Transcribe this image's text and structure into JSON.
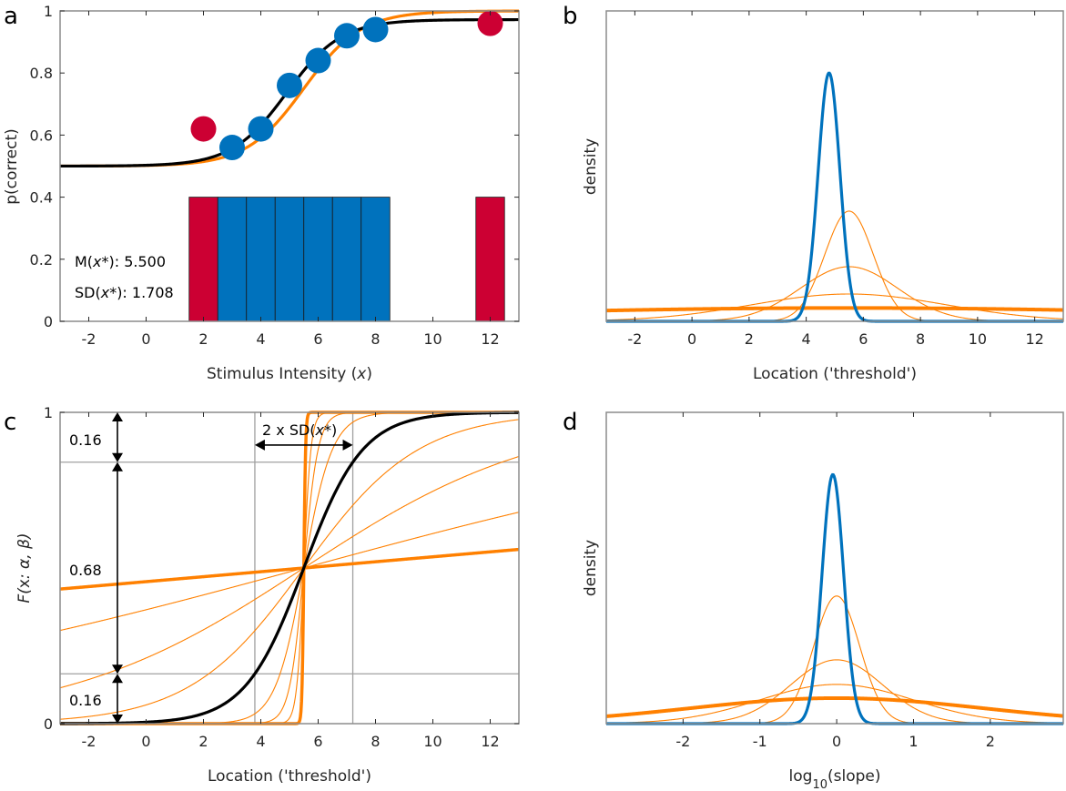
{
  "colors": {
    "blue": "#0072BD",
    "red": "#CC0033",
    "orange": "#FF8000",
    "black": "#000000",
    "axis": "#8c8c8c",
    "grid": "#a0a0a0"
  },
  "chart_data": [
    {
      "panel": "a",
      "type": "scatter",
      "xlabel_prefix": "Stimulus Intensity (",
      "xlabel_var": "x",
      "xlabel_suffix": ")",
      "ylabel": "p(correct)",
      "xlim": [
        -3,
        13
      ],
      "ylim": [
        0,
        1
      ],
      "xticks": [
        -2,
        0,
        2,
        4,
        6,
        8,
        10,
        12
      ],
      "yticks": [
        0,
        0.2,
        0.4,
        0.6,
        0.8,
        1
      ],
      "ytick_labels": [
        "0",
        "0.2",
        "0.4",
        "0.6",
        "0.8",
        "1"
      ],
      "points_included": {
        "x": [
          3,
          4,
          5,
          6,
          7,
          8
        ],
        "y": [
          0.56,
          0.62,
          0.76,
          0.84,
          0.92,
          0.94
        ],
        "color": "blue"
      },
      "points_excluded": {
        "x": [
          2,
          12
        ],
        "y": [
          0.62,
          0.96
        ],
        "color": "red"
      },
      "bars": [
        {
          "x": 2,
          "height": 0.4,
          "color": "red"
        },
        {
          "x": 3,
          "height": 0.4,
          "color": "blue"
        },
        {
          "x": 4,
          "height": 0.4,
          "color": "blue"
        },
        {
          "x": 5,
          "height": 0.4,
          "color": "blue"
        },
        {
          "x": 6,
          "height": 0.4,
          "color": "blue"
        },
        {
          "x": 7,
          "height": 0.4,
          "color": "blue"
        },
        {
          "x": 8,
          "height": 0.4,
          "color": "blue"
        },
        {
          "x": 12,
          "height": 0.4,
          "color": "red"
        }
      ],
      "curves": [
        {
          "name": "fit",
          "color": "black",
          "guess": 0.5,
          "lapse_top": 0.972,
          "threshold": 4.9,
          "slope": 1.05
        },
        {
          "name": "true",
          "color": "orange",
          "guess": 0.5,
          "lapse_top": 1.0,
          "threshold": 5.5,
          "slope": 1.0
        }
      ],
      "annotations": [
        {
          "prefix": "M(",
          "var": "x*",
          "suffix": "): 5.500"
        },
        {
          "prefix": "SD(",
          "var": "x*",
          "suffix": "): 1.708"
        }
      ]
    },
    {
      "panel": "b",
      "type": "line",
      "xlabel": "Location ('threshold')",
      "ylabel": "density",
      "xlim": [
        -3,
        13
      ],
      "xticks": [
        -2,
        0,
        2,
        4,
        6,
        8,
        10,
        12
      ],
      "series": [
        {
          "name": "posterior",
          "color": "blue",
          "kind": "normal",
          "mean": 4.8,
          "sd": 0.38,
          "peak": 0.8,
          "width": "thick"
        },
        {
          "name": "prior-1",
          "color": "orange",
          "kind": "normal",
          "mean": 5.5,
          "sd": 0.85,
          "peak": 0.355,
          "width": "thin"
        },
        {
          "name": "prior-2",
          "color": "orange",
          "kind": "normal",
          "mean": 5.5,
          "sd": 1.7,
          "peak": 0.176,
          "width": "thin"
        },
        {
          "name": "prior-3",
          "color": "orange",
          "kind": "normal",
          "mean": 5.5,
          "sd": 3.4,
          "peak": 0.088,
          "width": "thin"
        },
        {
          "name": "prior-4",
          "color": "orange",
          "kind": "normal",
          "mean": 5.5,
          "sd": 13.0,
          "peak": 0.043,
          "width": "thick"
        }
      ]
    },
    {
      "panel": "c",
      "type": "line",
      "xlabel": "Location ('threshold')",
      "ylabel_prefix": "F(",
      "ylabel_var": "x",
      "ylabel_suffix": ": α, β)",
      "xlim": [
        -3,
        13
      ],
      "ylim": [
        0,
        1
      ],
      "xticks": [
        -2,
        0,
        2,
        4,
        6,
        8,
        10,
        12
      ],
      "yticks": [
        0,
        1
      ],
      "ytick_labels": [
        "0",
        "1"
      ],
      "hgrid": [
        0.16,
        0.84
      ],
      "vgrid": [
        3.792,
        7.208
      ],
      "threshold": 5.5,
      "black_slope": 0.97,
      "orange_slopes": [
        0.032,
        0.1,
        0.24,
        0.5,
        2,
        4,
        8,
        32
      ],
      "thick_orange_slopes": [
        0.032,
        32
      ],
      "annotations": {
        "top_prob": "0.16",
        "mid_prob": "0.68",
        "bottom_prob": "0.16",
        "sd_prefix": "2 x SD(",
        "sd_var": "x*",
        "sd_suffix": ")"
      },
      "arrow_x": -1
    },
    {
      "panel": "d",
      "type": "line",
      "xlabel_prefix": "log",
      "xlabel_sub": "10",
      "xlabel_suffix": "(slope)",
      "ylabel": "density",
      "xlim": [
        -3,
        2.95
      ],
      "xticks": [
        -2,
        -1,
        0,
        1,
        2
      ],
      "series": [
        {
          "name": "posterior",
          "color": "blue",
          "kind": "normal",
          "mean": -0.05,
          "sd": 0.14,
          "peak": 0.8,
          "width": "thick"
        },
        {
          "name": "prior-1",
          "color": "orange",
          "kind": "normal",
          "mean": 0.0,
          "sd": 0.3,
          "peak": 0.41,
          "width": "thin"
        },
        {
          "name": "prior-2",
          "color": "orange",
          "kind": "normal",
          "mean": 0.0,
          "sd": 0.6,
          "peak": 0.205,
          "width": "thin"
        },
        {
          "name": "prior-3",
          "color": "orange",
          "kind": "normal",
          "mean": 0.0,
          "sd": 1.0,
          "peak": 0.126,
          "width": "thin"
        },
        {
          "name": "prior-4",
          "color": "orange",
          "kind": "normal",
          "mean": 0.0,
          "sd": 1.9,
          "peak": 0.082,
          "width": "thick"
        }
      ]
    }
  ],
  "panel_letters": [
    "a",
    "b",
    "c",
    "d"
  ]
}
